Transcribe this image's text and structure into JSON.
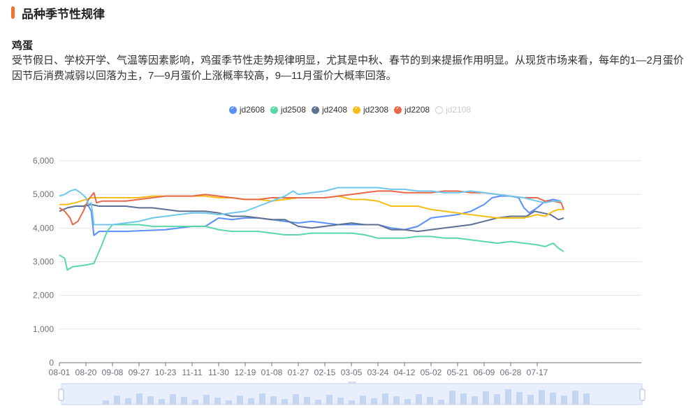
{
  "section": {
    "title": "品种季节性规律"
  },
  "item": {
    "name": "鸡蛋",
    "description": "受节假日、学校开学、气温等因素影响，鸡蛋季节性走势规律明显，尤其是中秋、春节的到来提振作用明显。从现货市场来看，每年的1—2月蛋价因节后消费减弱以回落为主，7—9月蛋价上涨概率较高，9—11月蛋价大概率回落。"
  },
  "legend": [
    {
      "label": "jd2608",
      "color": "#5b8ff9",
      "active": true
    },
    {
      "label": "jd2508",
      "color": "#5ad8a6",
      "active": true
    },
    {
      "label": "jd2408",
      "color": "#5d7092",
      "active": true
    },
    {
      "label": "jd2308",
      "color": "#f6bd16",
      "active": true
    },
    {
      "label": "jd2208",
      "color": "#e8684a",
      "active": true
    },
    {
      "label": "jd2108",
      "color": "#6dc8ec",
      "active": false
    }
  ],
  "chart_data": {
    "type": "line",
    "categories": [
      "08-01",
      "08-20",
      "09-08",
      "09-27",
      "10-23",
      "11-11",
      "11-30",
      "12-19",
      "01-08",
      "01-27",
      "02-15",
      "03-05",
      "03-24",
      "04-12",
      "05-02",
      "05-21",
      "06-09",
      "06-28",
      "07-17"
    ],
    "ylim": [
      0,
      6000
    ],
    "yticks": [
      0,
      1000,
      2000,
      3000,
      4000,
      5000,
      6000
    ],
    "ytick_labels": [
      "0",
      "1,000",
      "2,000",
      "3,000",
      "4,000",
      "5,000",
      "6,000"
    ],
    "grid": true,
    "legend_position": "top-center",
    "series": [
      {
        "name": "jd2608",
        "color": "#5b8ff9",
        "points": [
          [
            0.9,
            4620
          ],
          [
            1.0,
            4700
          ],
          [
            1.1,
            4650
          ],
          [
            1.2,
            4500
          ],
          [
            1.3,
            3780
          ],
          [
            1.5,
            3900
          ],
          [
            2.0,
            3900
          ],
          [
            2.5,
            3900
          ],
          [
            3.0,
            3920
          ],
          [
            4.0,
            3950
          ],
          [
            4.5,
            4000
          ],
          [
            5.0,
            4050
          ],
          [
            5.5,
            4050
          ],
          [
            6.0,
            4300
          ],
          [
            6.5,
            4250
          ],
          [
            7.0,
            4300
          ],
          [
            7.5,
            4300
          ],
          [
            8.0,
            4250
          ],
          [
            8.5,
            4200
          ],
          [
            9.0,
            4150
          ],
          [
            9.5,
            4200
          ],
          [
            10.0,
            4150
          ],
          [
            10.5,
            4100
          ],
          [
            11.0,
            4100
          ],
          [
            11.5,
            4100
          ],
          [
            12.0,
            4100
          ],
          [
            12.5,
            4000
          ],
          [
            13.0,
            3950
          ],
          [
            13.5,
            4050
          ],
          [
            14.0,
            4300
          ],
          [
            14.5,
            4350
          ],
          [
            15.0,
            4400
          ],
          [
            15.5,
            4500
          ],
          [
            16.0,
            4700
          ],
          [
            16.3,
            4900
          ],
          [
            16.6,
            4950
          ],
          [
            17.0,
            4950
          ],
          [
            17.3,
            4900
          ],
          [
            17.5,
            4600
          ],
          [
            17.7,
            4450
          ],
          [
            18.0,
            4600
          ],
          [
            18.3,
            4800
          ],
          [
            18.6,
            4850
          ],
          [
            18.9,
            4800
          ]
        ]
      },
      {
        "name": "jd2508",
        "color": "#5ad8a6",
        "points": [
          [
            0.0,
            3200
          ],
          [
            0.2,
            3100
          ],
          [
            0.3,
            2750
          ],
          [
            0.5,
            2850
          ],
          [
            1.0,
            2900
          ],
          [
            1.3,
            2950
          ],
          [
            1.6,
            3500
          ],
          [
            1.8,
            3900
          ],
          [
            2.0,
            4100
          ],
          [
            2.5,
            4100
          ],
          [
            3.0,
            4100
          ],
          [
            3.5,
            4050
          ],
          [
            4.0,
            4050
          ],
          [
            4.5,
            4050
          ],
          [
            5.0,
            4050
          ],
          [
            5.5,
            4050
          ],
          [
            6.0,
            3950
          ],
          [
            6.5,
            3900
          ],
          [
            7.0,
            3900
          ],
          [
            7.5,
            3900
          ],
          [
            8.0,
            3850
          ],
          [
            8.5,
            3800
          ],
          [
            9.0,
            3800
          ],
          [
            9.5,
            3850
          ],
          [
            10.0,
            3850
          ],
          [
            10.5,
            3850
          ],
          [
            11.0,
            3850
          ],
          [
            11.5,
            3800
          ],
          [
            12.0,
            3700
          ],
          [
            12.5,
            3700
          ],
          [
            13.0,
            3700
          ],
          [
            13.5,
            3750
          ],
          [
            14.0,
            3750
          ],
          [
            14.5,
            3700
          ],
          [
            15.0,
            3700
          ],
          [
            15.5,
            3650
          ],
          [
            16.0,
            3600
          ],
          [
            16.5,
            3550
          ],
          [
            17.0,
            3600
          ],
          [
            17.5,
            3550
          ],
          [
            18.0,
            3500
          ],
          [
            18.3,
            3450
          ],
          [
            18.6,
            3550
          ],
          [
            18.8,
            3400
          ],
          [
            19.0,
            3300
          ]
        ]
      },
      {
        "name": "jd2408",
        "color": "#5d7092",
        "points": [
          [
            0.0,
            4500
          ],
          [
            0.3,
            4600
          ],
          [
            0.6,
            4650
          ],
          [
            0.9,
            4650
          ],
          [
            1.2,
            4700
          ],
          [
            1.5,
            4650
          ],
          [
            2.0,
            4650
          ],
          [
            2.5,
            4650
          ],
          [
            3.0,
            4600
          ],
          [
            3.5,
            4600
          ],
          [
            4.0,
            4550
          ],
          [
            4.5,
            4500
          ],
          [
            5.0,
            4500
          ],
          [
            5.5,
            4500
          ],
          [
            6.0,
            4450
          ],
          [
            6.5,
            4350
          ],
          [
            7.0,
            4350
          ],
          [
            7.5,
            4300
          ],
          [
            8.0,
            4250
          ],
          [
            8.5,
            4250
          ],
          [
            9.0,
            4050
          ],
          [
            9.5,
            4000
          ],
          [
            10.0,
            4050
          ],
          [
            10.5,
            4100
          ],
          [
            11.0,
            4150
          ],
          [
            11.5,
            4100
          ],
          [
            12.0,
            4100
          ],
          [
            12.5,
            3950
          ],
          [
            13.0,
            3950
          ],
          [
            13.5,
            3900
          ],
          [
            14.0,
            3950
          ],
          [
            14.5,
            4000
          ],
          [
            15.0,
            4050
          ],
          [
            15.5,
            4100
          ],
          [
            16.0,
            4200
          ],
          [
            16.5,
            4300
          ],
          [
            17.0,
            4350
          ],
          [
            17.3,
            4350
          ],
          [
            17.6,
            4350
          ],
          [
            17.9,
            4500
          ],
          [
            18.2,
            4450
          ],
          [
            18.5,
            4400
          ],
          [
            18.8,
            4250
          ],
          [
            19.0,
            4300
          ]
        ]
      },
      {
        "name": "jd2308",
        "color": "#f6bd16",
        "points": [
          [
            0.0,
            4700
          ],
          [
            0.3,
            4700
          ],
          [
            0.6,
            4750
          ],
          [
            1.0,
            4850
          ],
          [
            1.2,
            4900
          ],
          [
            1.5,
            4900
          ],
          [
            2.0,
            4900
          ],
          [
            2.5,
            4900
          ],
          [
            3.0,
            4900
          ],
          [
            3.5,
            4950
          ],
          [
            4.0,
            4950
          ],
          [
            4.5,
            4950
          ],
          [
            5.0,
            4950
          ],
          [
            5.5,
            4950
          ],
          [
            6.0,
            4900
          ],
          [
            6.5,
            4900
          ],
          [
            7.0,
            4850
          ],
          [
            7.5,
            4850
          ],
          [
            8.0,
            4800
          ],
          [
            8.5,
            4850
          ],
          [
            9.0,
            4900
          ],
          [
            9.5,
            4900
          ],
          [
            10.0,
            4900
          ],
          [
            10.5,
            4950
          ],
          [
            11.0,
            4850
          ],
          [
            11.5,
            4850
          ],
          [
            12.0,
            4800
          ],
          [
            12.5,
            4650
          ],
          [
            13.0,
            4650
          ],
          [
            13.5,
            4650
          ],
          [
            14.0,
            4550
          ],
          [
            14.5,
            4500
          ],
          [
            15.0,
            4450
          ],
          [
            15.5,
            4400
          ],
          [
            16.0,
            4350
          ],
          [
            16.5,
            4300
          ],
          [
            17.0,
            4300
          ],
          [
            17.5,
            4300
          ],
          [
            18.0,
            4400
          ],
          [
            18.3,
            4350
          ],
          [
            18.6,
            4500
          ],
          [
            18.8,
            4550
          ],
          [
            19.0,
            4550
          ]
        ]
      },
      {
        "name": "jd2208",
        "color": "#e8684a",
        "points": [
          [
            0.0,
            4600
          ],
          [
            0.2,
            4500
          ],
          [
            0.4,
            4300
          ],
          [
            0.5,
            4100
          ],
          [
            0.7,
            4200
          ],
          [
            0.9,
            4500
          ],
          [
            1.1,
            4850
          ],
          [
            1.3,
            5050
          ],
          [
            1.4,
            4750
          ],
          [
            1.6,
            4800
          ],
          [
            2.0,
            4800
          ],
          [
            2.5,
            4800
          ],
          [
            3.0,
            4850
          ],
          [
            3.5,
            4900
          ],
          [
            4.0,
            4950
          ],
          [
            4.5,
            4950
          ],
          [
            5.0,
            4950
          ],
          [
            5.5,
            5000
          ],
          [
            6.0,
            4950
          ],
          [
            6.5,
            4900
          ],
          [
            7.0,
            4850
          ],
          [
            7.5,
            4850
          ],
          [
            8.0,
            4900
          ],
          [
            8.5,
            4900
          ],
          [
            9.0,
            4900
          ],
          [
            9.5,
            4900
          ],
          [
            10.0,
            4900
          ],
          [
            10.5,
            4950
          ],
          [
            11.0,
            5000
          ],
          [
            11.5,
            5050
          ],
          [
            12.0,
            5100
          ],
          [
            12.5,
            5100
          ],
          [
            13.0,
            5050
          ],
          [
            13.5,
            5050
          ],
          [
            14.0,
            5050
          ],
          [
            14.5,
            5100
          ],
          [
            15.0,
            5100
          ],
          [
            15.5,
            5050
          ],
          [
            16.0,
            5050
          ],
          [
            16.5,
            5000
          ],
          [
            17.0,
            4950
          ],
          [
            17.5,
            4900
          ],
          [
            18.0,
            4900
          ],
          [
            18.3,
            4800
          ],
          [
            18.6,
            4800
          ],
          [
            18.9,
            4750
          ],
          [
            19.0,
            4550
          ]
        ]
      },
      {
        "name": "jd2108",
        "color": "#6dc8ec",
        "points": [
          [
            0.0,
            4950
          ],
          [
            0.2,
            5000
          ],
          [
            0.4,
            5100
          ],
          [
            0.6,
            5150
          ],
          [
            0.8,
            5050
          ],
          [
            1.0,
            4900
          ],
          [
            1.1,
            4700
          ],
          [
            1.2,
            4750
          ],
          [
            1.3,
            4100
          ],
          [
            1.5,
            4100
          ],
          [
            2.0,
            4100
          ],
          [
            2.5,
            4150
          ],
          [
            3.0,
            4200
          ],
          [
            3.5,
            4300
          ],
          [
            4.0,
            4350
          ],
          [
            4.5,
            4400
          ],
          [
            5.0,
            4450
          ],
          [
            5.5,
            4450
          ],
          [
            6.0,
            4400
          ],
          [
            6.5,
            4450
          ],
          [
            7.0,
            4500
          ],
          [
            7.5,
            4650
          ],
          [
            8.0,
            4800
          ],
          [
            8.5,
            4950
          ],
          [
            8.8,
            5100
          ],
          [
            9.0,
            5000
          ],
          [
            9.5,
            5050
          ],
          [
            10.0,
            5100
          ],
          [
            10.5,
            5200
          ],
          [
            11.0,
            5200
          ],
          [
            11.5,
            5200
          ],
          [
            12.0,
            5200
          ],
          [
            12.5,
            5150
          ],
          [
            13.0,
            5150
          ],
          [
            13.5,
            5100
          ],
          [
            14.0,
            5100
          ],
          [
            14.5,
            5050
          ],
          [
            15.0,
            5050
          ],
          [
            15.5,
            5100
          ],
          [
            16.0,
            5050
          ],
          [
            16.5,
            5000
          ],
          [
            17.0,
            4950
          ],
          [
            17.5,
            4900
          ],
          [
            18.0,
            4800
          ],
          [
            18.3,
            4750
          ],
          [
            18.6,
            4800
          ],
          [
            18.9,
            4800
          ]
        ]
      }
    ]
  }
}
